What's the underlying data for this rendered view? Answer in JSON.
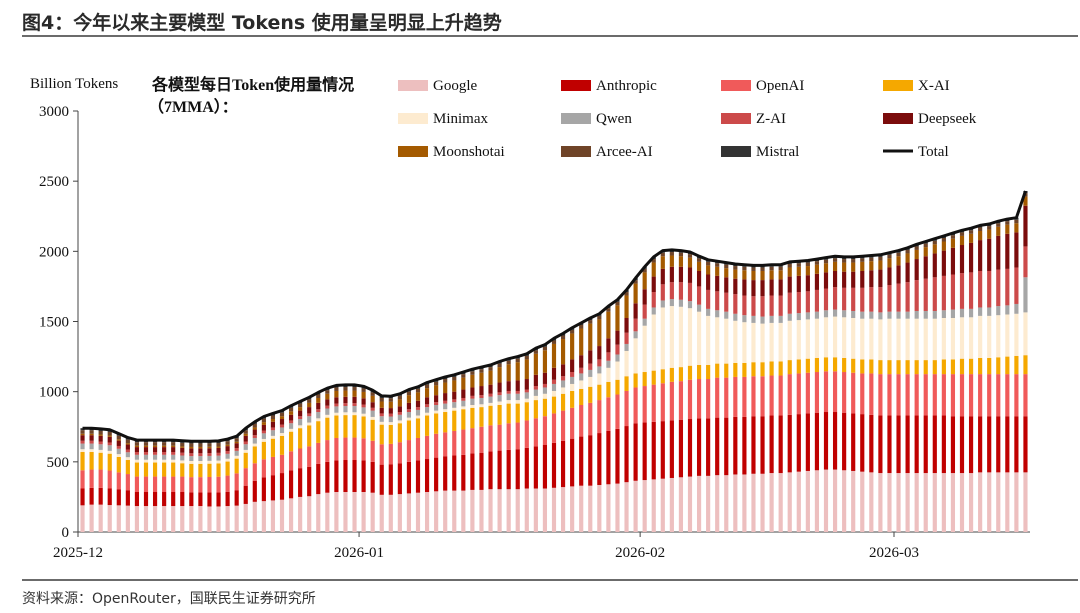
{
  "figure_title": "图4：今年以来主要模型 Tokens 使用量呈明显上升趋势",
  "source": "资料来源：OpenRouter，国联民生证券研究所",
  "chart_data": {
    "type": "bar",
    "stacked": true,
    "title_line1": "各模型每日Token使用量情况",
    "title_line2": "（7MMA）：",
    "ylabel": "Billion Tokens",
    "xlabel": "",
    "ylim": [
      0,
      3000
    ],
    "yticks": [
      0,
      500,
      1000,
      1500,
      2000,
      2500,
      3000
    ],
    "grid": false,
    "legend_position": "top-right",
    "x_tick_labels": [
      {
        "label": "2025-12",
        "index": 0
      },
      {
        "label": "2026-01",
        "index": 31
      },
      {
        "label": "2026-02",
        "index": 62
      },
      {
        "label": "2026-03",
        "index": 90
      }
    ],
    "period": "2025-12-01 to 2026-03-15 (daily)",
    "series": [
      {
        "name": "Google",
        "color": "#EDBFBF",
        "values": [
          190,
          195,
          195,
          192,
          190,
          188,
          185,
          185,
          185,
          185,
          185,
          185,
          185,
          185,
          182,
          182,
          185,
          188,
          200,
          215,
          220,
          225,
          230,
          240,
          250,
          255,
          270,
          280,
          285,
          285,
          285,
          285,
          280,
          265,
          265,
          270,
          275,
          280,
          285,
          290,
          295,
          295,
          295,
          300,
          300,
          305,
          305,
          305,
          305,
          310,
          310,
          310,
          315,
          320,
          325,
          330,
          330,
          335,
          340,
          345,
          355,
          365,
          370,
          375,
          380,
          385,
          390,
          395,
          400,
          400,
          405,
          405,
          410,
          410,
          415,
          415,
          420,
          420,
          425,
          430,
          435,
          440,
          445,
          445,
          440,
          435,
          430,
          425,
          420,
          420,
          420,
          420,
          420,
          420,
          420,
          420,
          420,
          420,
          420,
          425,
          425,
          425,
          425,
          425,
          425
        ]
      },
      {
        "name": "Anthropic",
        "color": "#C00000",
        "values": [
          120,
          120,
          120,
          118,
          115,
          110,
          100,
          100,
          100,
          100,
          100,
          100,
          98,
          98,
          100,
          100,
          102,
          110,
          130,
          150,
          170,
          180,
          190,
          200,
          205,
          210,
          215,
          220,
          225,
          228,
          228,
          225,
          220,
          215,
          218,
          220,
          225,
          230,
          235,
          240,
          245,
          250,
          255,
          260,
          265,
          270,
          275,
          280,
          285,
          290,
          300,
          310,
          320,
          330,
          340,
          350,
          360,
          370,
          380,
          390,
          400,
          410,
          410,
          410,
          410,
          410,
          410,
          410,
          410,
          410,
          410,
          410,
          410,
          410,
          410,
          410,
          410,
          410,
          410,
          410,
          410,
          410,
          410,
          410,
          410,
          410,
          410,
          410,
          410,
          410,
          410,
          410,
          410,
          410,
          410,
          410,
          405,
          405,
          405,
          400,
          400,
          400,
          400,
          400,
          400
        ]
      },
      {
        "name": "OpenAI",
        "color": "#F05A5A",
        "values": [
          130,
          130,
          130,
          128,
          120,
          115,
          110,
          110,
          110,
          110,
          110,
          110,
          108,
          108,
          110,
          112,
          115,
          120,
          125,
          125,
          128,
          130,
          130,
          135,
          140,
          145,
          150,
          155,
          160,
          160,
          160,
          158,
          150,
          145,
          145,
          150,
          155,
          160,
          165,
          170,
          170,
          175,
          180,
          180,
          185,
          185,
          185,
          190,
          190,
          195,
          200,
          205,
          210,
          215,
          220,
          225,
          230,
          235,
          240,
          245,
          250,
          255,
          260,
          265,
          270,
          275,
          275,
          280,
          280,
          280,
          285,
          285,
          285,
          285,
          285,
          285,
          285,
          285,
          290,
          290,
          290,
          290,
          290,
          290,
          290,
          290,
          290,
          295,
          295,
          295,
          295,
          295,
          295,
          295,
          295,
          295,
          300,
          300,
          300,
          300,
          300,
          300,
          300,
          300,
          300
        ]
      },
      {
        "name": "X-AI",
        "color": "#F5A800",
        "values": [
          130,
          125,
          120,
          120,
          110,
          100,
          100,
          100,
          100,
          100,
          100,
          95,
          95,
          95,
          95,
          95,
          100,
          105,
          110,
          120,
          125,
          130,
          135,
          140,
          145,
          150,
          155,
          160,
          160,
          160,
          160,
          155,
          150,
          140,
          135,
          135,
          140,
          140,
          145,
          145,
          145,
          145,
          145,
          145,
          140,
          140,
          140,
          140,
          135,
          130,
          130,
          125,
          120,
          120,
          120,
          115,
          115,
          110,
          110,
          105,
          105,
          100,
          100,
          100,
          100,
          100,
          100,
          100,
          100,
          100,
          100,
          100,
          100,
          100,
          100,
          100,
          100,
          100,
          100,
          100,
          100,
          100,
          100,
          100,
          100,
          100,
          100,
          100,
          100,
          100,
          100,
          100,
          100,
          100,
          100,
          105,
          105,
          110,
          110,
          115,
          115,
          120,
          125,
          130,
          135
        ]
      },
      {
        "name": "Minimax",
        "color": "#FDEBD0",
        "values": [
          20,
          20,
          20,
          20,
          20,
          20,
          20,
          20,
          20,
          20,
          20,
          20,
          20,
          20,
          20,
          20,
          20,
          20,
          20,
          20,
          20,
          20,
          20,
          20,
          20,
          20,
          20,
          20,
          20,
          20,
          20,
          20,
          20,
          20,
          20,
          20,
          20,
          20,
          20,
          20,
          20,
          20,
          20,
          20,
          20,
          20,
          25,
          25,
          25,
          25,
          30,
          35,
          40,
          45,
          50,
          60,
          70,
          80,
          100,
          130,
          180,
          250,
          330,
          400,
          440,
          440,
          430,
          410,
          380,
          350,
          330,
          320,
          300,
          290,
          280,
          275,
          275,
          275,
          280,
          280,
          280,
          280,
          285,
          290,
          290,
          290,
          290,
          290,
          290,
          295,
          295,
          295,
          295,
          295,
          295,
          295,
          295,
          295,
          295,
          300,
          300,
          300,
          300,
          300,
          305
        ]
      },
      {
        "name": "Qwen",
        "color": "#A6A6A6",
        "values": [
          40,
          40,
          40,
          40,
          38,
          35,
          35,
          35,
          35,
          35,
          35,
          35,
          35,
          35,
          35,
          35,
          35,
          35,
          40,
          40,
          40,
          40,
          40,
          40,
          45,
          45,
          45,
          45,
          45,
          45,
          45,
          45,
          45,
          40,
          40,
          40,
          40,
          40,
          40,
          40,
          40,
          40,
          40,
          45,
          45,
          45,
          45,
          45,
          45,
          45,
          45,
          45,
          50,
          50,
          50,
          50,
          50,
          50,
          50,
          50,
          50,
          50,
          50,
          50,
          50,
          50,
          50,
          50,
          50,
          50,
          50,
          50,
          50,
          50,
          50,
          50,
          50,
          50,
          50,
          50,
          50,
          50,
          50,
          50,
          50,
          50,
          50,
          50,
          50,
          50,
          50,
          50,
          55,
          55,
          55,
          55,
          60,
          60,
          60,
          60,
          60,
          65,
          65,
          70,
          250
        ]
      },
      {
        "name": "Z-AI",
        "color": "#CC4A4A",
        "values": [
          20,
          20,
          20,
          20,
          20,
          20,
          20,
          20,
          20,
          20,
          20,
          20,
          20,
          20,
          20,
          20,
          20,
          20,
          20,
          20,
          20,
          20,
          20,
          20,
          20,
          20,
          20,
          20,
          20,
          20,
          20,
          20,
          20,
          20,
          20,
          20,
          20,
          20,
          20,
          20,
          20,
          20,
          20,
          20,
          20,
          20,
          20,
          20,
          20,
          20,
          25,
          25,
          30,
          30,
          35,
          40,
          45,
          50,
          60,
          70,
          80,
          90,
          100,
          110,
          115,
          120,
          125,
          130,
          130,
          135,
          135,
          135,
          140,
          140,
          140,
          145,
          145,
          145,
          150,
          150,
          150,
          155,
          155,
          160,
          160,
          165,
          170,
          175,
          180,
          190,
          200,
          210,
          220,
          230,
          240,
          245,
          250,
          255,
          260,
          260,
          260,
          260,
          260,
          260,
          220
        ]
      },
      {
        "name": "Deepseek",
        "color": "#7B0C0C",
        "values": [
          40,
          40,
          40,
          40,
          38,
          35,
          35,
          35,
          35,
          35,
          35,
          35,
          35,
          35,
          35,
          35,
          35,
          35,
          40,
          40,
          40,
          40,
          40,
          40,
          40,
          45,
          45,
          45,
          45,
          45,
          45,
          45,
          40,
          40,
          40,
          40,
          45,
          45,
          50,
          50,
          55,
          55,
          60,
          60,
          65,
          65,
          70,
          70,
          75,
          75,
          80,
          80,
          85,
          85,
          90,
          90,
          95,
          95,
          100,
          100,
          105,
          110,
          110,
          110,
          110,
          110,
          110,
          110,
          110,
          110,
          110,
          110,
          110,
          115,
          115,
          115,
          115,
          115,
          115,
          115,
          115,
          115,
          115,
          115,
          115,
          115,
          120,
          120,
          125,
          125,
          130,
          140,
          150,
          160,
          170,
          180,
          190,
          200,
          210,
          220,
          230,
          240,
          250,
          250,
          290
        ]
      },
      {
        "name": "Moonshotai",
        "color": "#A45A00",
        "values": [
          10,
          10,
          10,
          10,
          10,
          10,
          10,
          10,
          10,
          10,
          10,
          10,
          10,
          10,
          10,
          10,
          10,
          10,
          15,
          15,
          20,
          20,
          20,
          25,
          25,
          30,
          35,
          40,
          45,
          45,
          45,
          45,
          45,
          45,
          45,
          50,
          55,
          60,
          65,
          70,
          75,
          80,
          85,
          90,
          95,
          100,
          110,
          120,
          130,
          140,
          150,
          160,
          170,
          180,
          185,
          190,
          190,
          190,
          190,
          180,
          160,
          140,
          120,
          100,
          90,
          80,
          75,
          70,
          65,
          65,
          65,
          65,
          65,
          65,
          65,
          65,
          65,
          65,
          65,
          65,
          65,
          65,
          65,
          65,
          65,
          65,
          65,
          65,
          65,
          65,
          65,
          65,
          65,
          65,
          65,
          65,
          65,
          65,
          65,
          65,
          65,
          65,
          65,
          65,
          65
        ]
      },
      {
        "name": "Arcee-AI",
        "color": "#6F4428",
        "values": [
          25,
          25,
          25,
          25,
          25,
          25,
          25,
          25,
          25,
          25,
          25,
          25,
          25,
          25,
          25,
          25,
          25,
          25,
          25,
          25,
          25,
          25,
          25,
          25,
          25,
          25,
          25,
          25,
          25,
          25,
          25,
          25,
          25,
          25,
          25,
          25,
          25,
          25,
          25,
          25,
          25,
          25,
          25,
          25,
          25,
          25,
          25,
          25,
          25,
          25,
          25,
          25,
          25,
          25,
          25,
          25,
          25,
          25,
          25,
          25,
          25,
          25,
          25,
          25,
          25,
          25,
          25,
          25,
          25,
          25,
          25,
          25,
          25,
          25,
          25,
          25,
          25,
          25,
          25,
          25,
          25,
          25,
          25,
          25,
          25,
          25,
          25,
          25,
          25,
          25,
          25,
          25,
          25,
          25,
          25,
          25,
          25,
          25,
          25,
          25,
          25,
          25,
          25,
          25,
          25
        ]
      },
      {
        "name": "Mistral",
        "color": "#333333",
        "values": [
          15,
          15,
          15,
          15,
          15,
          15,
          15,
          15,
          15,
          15,
          15,
          15,
          15,
          15,
          15,
          15,
          15,
          15,
          15,
          15,
          15,
          15,
          15,
          15,
          15,
          15,
          15,
          15,
          15,
          15,
          15,
          15,
          15,
          15,
          15,
          15,
          15,
          15,
          15,
          15,
          15,
          15,
          15,
          15,
          15,
          15,
          15,
          15,
          15,
          15,
          15,
          15,
          15,
          15,
          15,
          15,
          15,
          15,
          15,
          15,
          15,
          15,
          15,
          15,
          15,
          15,
          15,
          15,
          15,
          15,
          15,
          15,
          15,
          15,
          15,
          15,
          15,
          15,
          15,
          15,
          15,
          15,
          15,
          15,
          15,
          15,
          15,
          15,
          15,
          15,
          15,
          15,
          15,
          15,
          15,
          15,
          15,
          15,
          15,
          15,
          15,
          15,
          15,
          15,
          15
        ]
      }
    ],
    "total": {
      "name": "Total",
      "color": "#111111",
      "style": "line"
    }
  }
}
